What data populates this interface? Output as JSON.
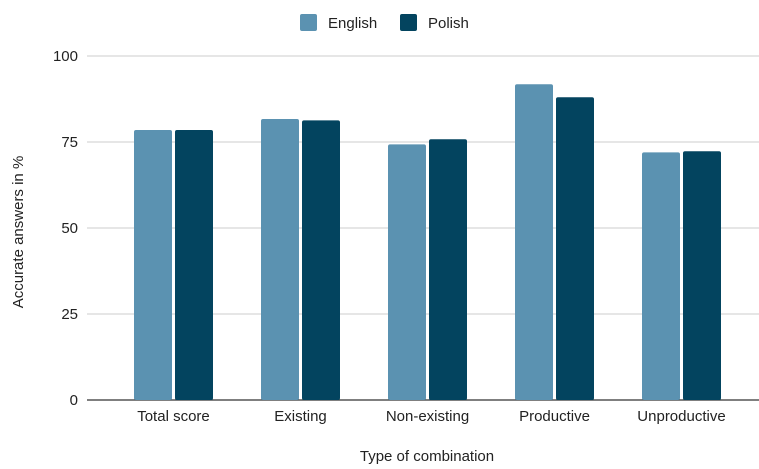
{
  "chart_data": {
    "type": "bar",
    "title": "",
    "xlabel": "Type of combination",
    "ylabel": "Accurate answers in %",
    "ylim": [
      0,
      100
    ],
    "yticks": [
      0,
      25,
      50,
      75,
      100
    ],
    "grid": true,
    "legend_position": "top",
    "categories": [
      "Total score",
      "Existing",
      "Non-existing",
      "Productive",
      "Unproductive"
    ],
    "series": [
      {
        "name": "English",
        "color": "#5b92b1",
        "values": [
          78.5,
          81.7,
          74.3,
          91.8,
          72.0
        ]
      },
      {
        "name": "Polish",
        "color": "#03445f",
        "values": [
          78.5,
          81.3,
          75.8,
          88.0,
          72.3
        ]
      }
    ]
  }
}
